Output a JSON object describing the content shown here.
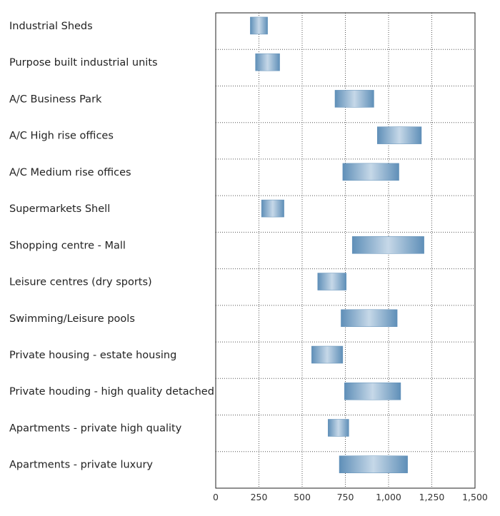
{
  "chart_data": {
    "type": "bar",
    "orientation": "horizontal-range",
    "title": "",
    "xlabel": "",
    "ylabel": "",
    "xlim": [
      0,
      1500
    ],
    "grid": true,
    "x_ticks": [
      0,
      250,
      500,
      750,
      1000,
      1250,
      1500
    ],
    "x_tick_labels": [
      "0",
      "250",
      "500",
      "750",
      "1,000",
      "1,250",
      "1,500"
    ],
    "categories": [
      "Industrial Sheds",
      "Purpose built industrial units",
      "A/C Business Park",
      "A/C High rise offices",
      "A/C Medium rise offices",
      "Supermarkets Shell",
      "Shopping centre - Mall",
      "Leisure centres (dry sports)",
      "Swimming/Leisure pools",
      "Private housing - estate housing",
      "Private houding - high quality detached",
      "Apartments - private high quality",
      "Apartments - private luxury"
    ],
    "ranges": [
      [
        200,
        300
      ],
      [
        230,
        370
      ],
      [
        690,
        915
      ],
      [
        935,
        1190
      ],
      [
        735,
        1060
      ],
      [
        265,
        395
      ],
      [
        790,
        1205
      ],
      [
        590,
        755
      ],
      [
        725,
        1050
      ],
      [
        555,
        735
      ],
      [
        745,
        1070
      ],
      [
        650,
        770
      ],
      [
        715,
        1110
      ]
    ],
    "colors": {
      "bar_edge": "#5f8fb8",
      "bar_center": "#c6d8e8",
      "grid": "#555555",
      "axis": "#222222"
    }
  }
}
